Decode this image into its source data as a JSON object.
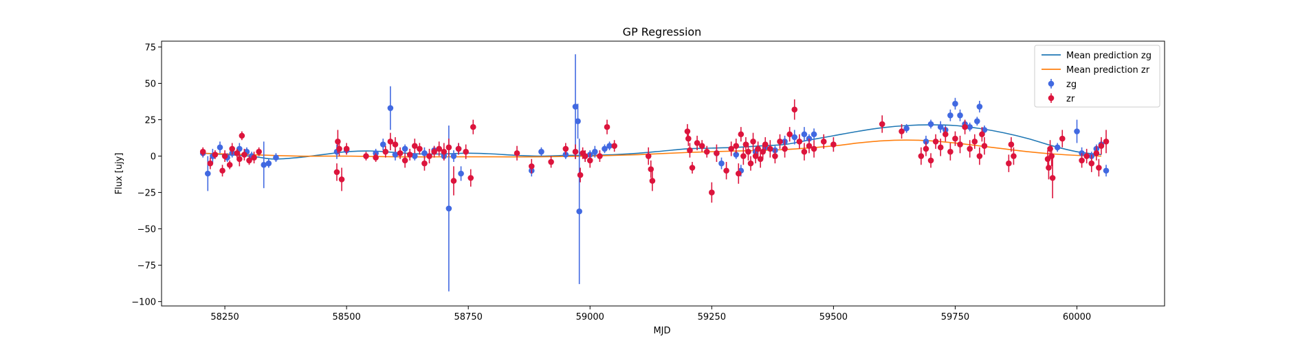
{
  "chart_data": {
    "type": "scatter",
    "title": "GP Regression",
    "xlabel": "MJD",
    "ylabel": "Flux [ujy]",
    "xlim": [
      58120,
      60180
    ],
    "ylim": [
      -103,
      79
    ],
    "xticks": [
      58250,
      58500,
      58750,
      59000,
      59250,
      59500,
      59750,
      60000
    ],
    "yticks": [
      -100,
      -75,
      -50,
      -25,
      0,
      25,
      50,
      75
    ],
    "grid": false,
    "legend_position": "top-right",
    "lines": [
      {
        "name": "Mean prediction zg",
        "color": "#1f77b4",
        "x": [
          58200,
          58300,
          58350,
          58400,
          58450,
          58500,
          58550,
          58600,
          58650,
          58700,
          58750,
          58800,
          58850,
          58900,
          58950,
          59000,
          59050,
          59100,
          59150,
          59200,
          59250,
          59300,
          59350,
          59400,
          59450,
          59500,
          59550,
          59600,
          59650,
          59700,
          59750,
          59800,
          59850,
          59900,
          59950,
          60000,
          60050
        ],
        "y": [
          2,
          0,
          -2,
          -1,
          1,
          3,
          3.5,
          2.5,
          1.5,
          1.5,
          2,
          1.5,
          0.5,
          0,
          0.5,
          0.5,
          1,
          2,
          3.5,
          5,
          5.5,
          6,
          7,
          8,
          11,
          14,
          17,
          19.5,
          21,
          21.5,
          21,
          19,
          16,
          12,
          7,
          3,
          1
        ]
      },
      {
        "name": "Mean prediction zr",
        "color": "#ff7f0e",
        "x": [
          58200,
          58300,
          58400,
          58500,
          58600,
          58700,
          58800,
          58900,
          59000,
          59100,
          59200,
          59300,
          59400,
          59500,
          59550,
          59600,
          59650,
          59700,
          59750,
          59800,
          59850,
          59900,
          59950,
          60000,
          60050
        ],
        "y": [
          2,
          1,
          0,
          0,
          -0.5,
          -0.5,
          -0.5,
          -0.5,
          0,
          1,
          2.5,
          3.5,
          4.5,
          7,
          9,
          10.5,
          11,
          10.5,
          9,
          7,
          5,
          3,
          1.5,
          0.5,
          0
        ]
      }
    ],
    "series": [
      {
        "name": "zg",
        "color": "#4169e1",
        "x": [
          58205,
          58215,
          58225,
          58240,
          58255,
          58265,
          58280,
          58295,
          58305,
          58330,
          58340,
          58355,
          58480,
          58500,
          58560,
          58575,
          58590,
          58600,
          58620,
          58640,
          58660,
          58680,
          58700,
          58710,
          58720,
          58730,
          58735,
          58880,
          58900,
          58950,
          58970,
          58975,
          58978,
          58990,
          59000,
          59010,
          59030,
          59040,
          59260,
          59270,
          59300,
          59310,
          59340,
          59360,
          59380,
          59400,
          59420,
          59440,
          59450,
          59460,
          59650,
          59690,
          59700,
          59720,
          59730,
          59740,
          59750,
          59760,
          59770,
          59780,
          59795,
          59800,
          59810,
          59960,
          60000,
          60010,
          60030,
          60040,
          60050,
          60060
        ],
        "y": [
          2,
          -12,
          0,
          6,
          -1,
          2,
          5,
          3,
          0,
          -6,
          -5,
          -1,
          3,
          4,
          2,
          8,
          33,
          1,
          5,
          0,
          2,
          4,
          0,
          -36,
          0,
          5,
          -12,
          -10,
          3,
          1,
          34,
          24,
          -38,
          0,
          1,
          3,
          5,
          7,
          2,
          -5,
          1,
          -10,
          3,
          6,
          4,
          10,
          13,
          15,
          12,
          15,
          19,
          10,
          22,
          20,
          18,
          28,
          36,
          28,
          22,
          20,
          24,
          34,
          18,
          6,
          17,
          2,
          0,
          5,
          8,
          -10
        ],
        "err": [
          3,
          12,
          5,
          4,
          3,
          3,
          4,
          3,
          3,
          16,
          3,
          3,
          5,
          3,
          3,
          4,
          15,
          4,
          3,
          3,
          4,
          3,
          3,
          57,
          4,
          4,
          5,
          4,
          3,
          3,
          36,
          12,
          50,
          4,
          3,
          4,
          3,
          3,
          3,
          4,
          3,
          4,
          3,
          3,
          3,
          4,
          5,
          5,
          3,
          4,
          3,
          4,
          3,
          4,
          3,
          4,
          4,
          4,
          3,
          3,
          3,
          4,
          3,
          3,
          8,
          4,
          3,
          3,
          3,
          4
        ]
      },
      {
        "name": "zr",
        "color": "#dc143c",
        "x": [
          58205,
          58220,
          58230,
          58245,
          58250,
          58260,
          58265,
          58275,
          58280,
          58285,
          58290,
          58300,
          58310,
          58320,
          58480,
          58482,
          58485,
          58490,
          58500,
          58540,
          58560,
          58580,
          58590,
          58600,
          58610,
          58620,
          58630,
          58640,
          58650,
          58660,
          58670,
          58680,
          58690,
          58700,
          58710,
          58720,
          58730,
          58745,
          58755,
          58760,
          58850,
          58880,
          58920,
          58950,
          58970,
          58980,
          58985,
          58990,
          59000,
          59020,
          59035,
          59050,
          59120,
          59125,
          59128,
          59200,
          59202,
          59205,
          59210,
          59220,
          59230,
          59240,
          59250,
          59260,
          59280,
          59290,
          59300,
          59305,
          59310,
          59315,
          59320,
          59325,
          59330,
          59335,
          59340,
          59345,
          59350,
          59355,
          59360,
          59370,
          59380,
          59390,
          59400,
          59410,
          59420,
          59430,
          59440,
          59450,
          59460,
          59480,
          59500,
          59600,
          59640,
          59680,
          59690,
          59700,
          59710,
          59720,
          59730,
          59740,
          59750,
          59760,
          59770,
          59780,
          59790,
          59800,
          59805,
          59810,
          59860,
          59865,
          59870,
          59940,
          59942,
          59945,
          59948,
          59950,
          59970,
          60010,
          60020,
          60030,
          60040,
          60045,
          60050,
          60060
        ],
        "y": [
          3,
          -5,
          1,
          -10,
          0,
          -6,
          5,
          2,
          -2,
          14,
          1,
          -3,
          -1,
          3,
          -11,
          10,
          5,
          -16,
          5,
          0,
          -1,
          3,
          10,
          8,
          2,
          -3,
          1,
          7,
          5,
          -5,
          0,
          3,
          5,
          3,
          6,
          -17,
          5,
          3,
          -15,
          20,
          2,
          -7,
          -4,
          5,
          3,
          -13,
          2,
          0,
          -3,
          0,
          20,
          7,
          0,
          -9,
          -17,
          17,
          12,
          4,
          -8,
          9,
          7,
          3,
          -25,
          2,
          -10,
          5,
          7,
          -12,
          15,
          0,
          8,
          3,
          -5,
          10,
          0,
          5,
          -2,
          3,
          8,
          5,
          0,
          10,
          5,
          15,
          32,
          10,
          3,
          7,
          5,
          10,
          8,
          22,
          17,
          0,
          5,
          -3,
          10,
          6,
          15,
          3,
          12,
          8,
          20,
          5,
          10,
          0,
          15,
          7,
          -5,
          8,
          0,
          -2,
          -8,
          5,
          0,
          -15,
          12,
          -3,
          0,
          -5,
          2,
          -8,
          7,
          10
        ],
        "err": [
          3,
          4,
          3,
          4,
          4,
          3,
          4,
          3,
          5,
          3,
          4,
          3,
          4,
          3,
          6,
          8,
          5,
          8,
          4,
          3,
          3,
          4,
          6,
          5,
          4,
          5,
          4,
          5,
          4,
          5,
          5,
          4,
          5,
          6,
          6,
          10,
          4,
          5,
          6,
          5,
          5,
          5,
          4,
          4,
          5,
          5,
          4,
          4,
          5,
          4,
          5,
          4,
          6,
          6,
          7,
          5,
          5,
          5,
          4,
          5,
          4,
          4,
          7,
          6,
          6,
          5,
          5,
          7,
          5,
          6,
          5,
          6,
          5,
          6,
          5,
          5,
          6,
          5,
          5,
          6,
          5,
          5,
          6,
          5,
          7,
          5,
          6,
          5,
          6,
          5,
          5,
          6,
          5,
          6,
          5,
          5,
          5,
          6,
          5,
          6,
          5,
          6,
          5,
          6,
          5,
          6,
          5,
          6,
          6,
          5,
          6,
          6,
          8,
          6,
          7,
          14,
          6,
          5,
          5,
          6,
          5,
          6,
          6,
          8
        ]
      }
    ]
  }
}
